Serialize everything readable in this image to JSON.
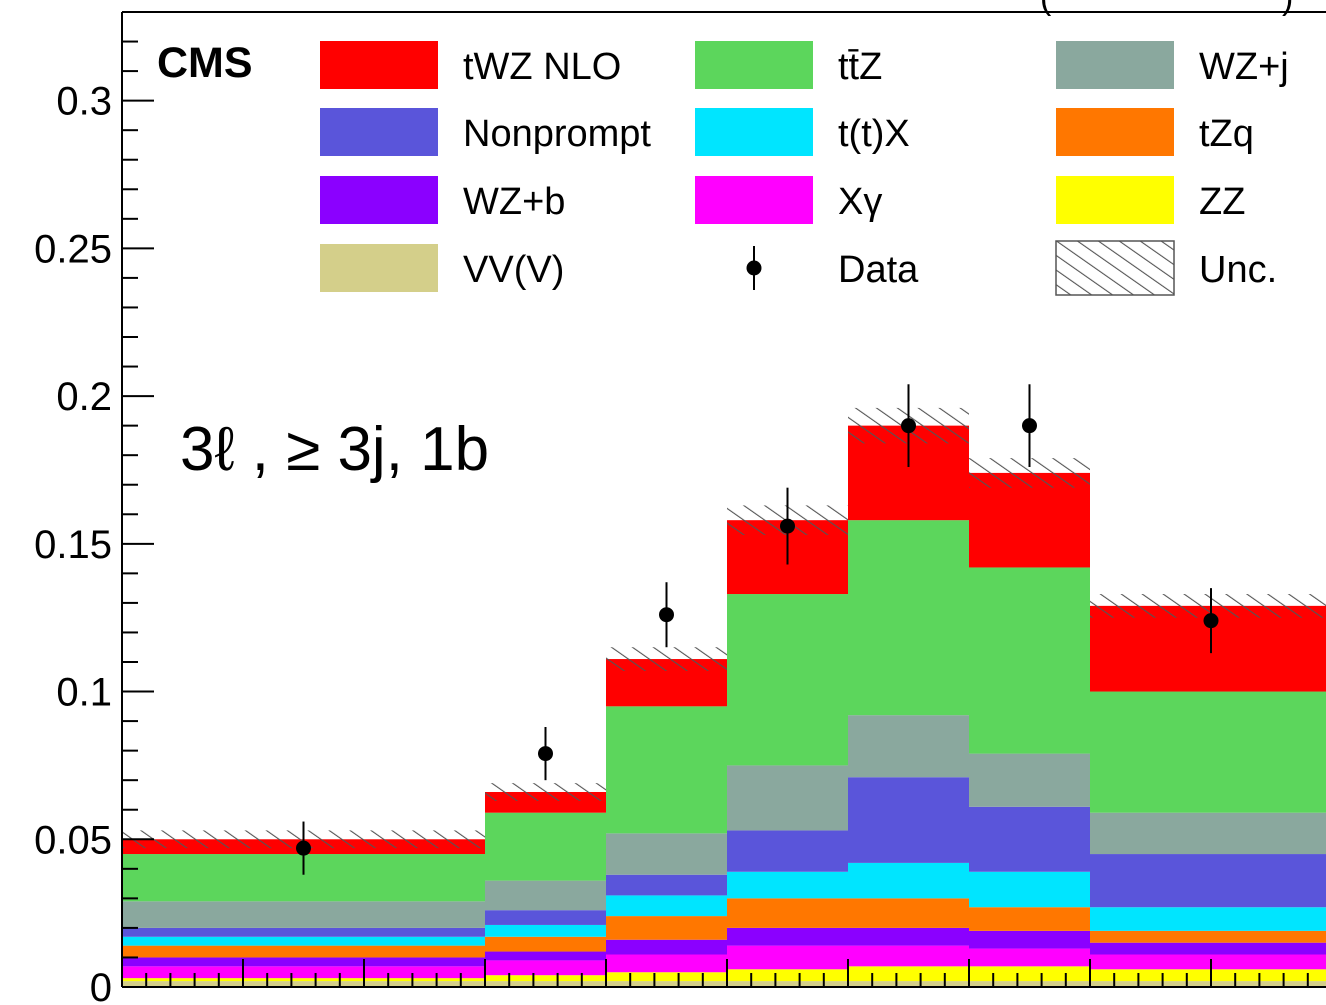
{
  "chart_data": {
    "type": "bar",
    "stacked": true,
    "experiment_label": "CMS",
    "region_label": "3ℓ , ≥ 3j, 1b",
    "title_partial": "(",
    "title_partial_right": ")",
    "x_bin_edges": [
      0,
      3,
      4,
      5,
      6,
      7,
      8,
      10
    ],
    "x_range": [
      0,
      10
    ],
    "y_range": [
      0,
      0.33
    ],
    "y_ticks": [
      0,
      0.05,
      0.1,
      0.15,
      0.2,
      0.25,
      0.3
    ],
    "y_tick_labels": [
      "0",
      "0.05",
      "0.1",
      "0.15",
      "0.2",
      "0.25",
      "0.3"
    ],
    "grid": false,
    "legend_position": "top",
    "series": [
      {
        "name": "VV(V)",
        "color": "#D4CF8A",
        "values": [
          0.002,
          0.002,
          0.002,
          0.002,
          0.002,
          0.002,
          0.002
        ]
      },
      {
        "name": "ZZ",
        "color": "#FFFF00",
        "values": [
          0.001,
          0.002,
          0.003,
          0.004,
          0.005,
          0.005,
          0.004
        ]
      },
      {
        "name": "Xγ",
        "color": "#FF00FF",
        "values": [
          0.004,
          0.005,
          0.006,
          0.008,
          0.007,
          0.006,
          0.005
        ]
      },
      {
        "name": "WZ+b",
        "color": "#8B00FF",
        "values": [
          0.003,
          0.003,
          0.005,
          0.006,
          0.006,
          0.006,
          0.004
        ]
      },
      {
        "name": "tZq",
        "color": "#FF7700",
        "values": [
          0.004,
          0.005,
          0.008,
          0.01,
          0.01,
          0.008,
          0.004
        ]
      },
      {
        "name": "t(t)X",
        "color": "#00E5FF",
        "values": [
          0.003,
          0.004,
          0.007,
          0.009,
          0.012,
          0.012,
          0.008
        ]
      },
      {
        "name": "Nonprompt",
        "color": "#5A55DA",
        "values": [
          0.003,
          0.005,
          0.007,
          0.014,
          0.029,
          0.022,
          0.018
        ]
      },
      {
        "name": "WZ+j",
        "color": "#8AA89E",
        "values": [
          0.009,
          0.01,
          0.014,
          0.022,
          0.021,
          0.018,
          0.014
        ]
      },
      {
        "name": "tt̄Z",
        "color": "#5CD65C",
        "values": [
          0.016,
          0.023,
          0.043,
          0.058,
          0.066,
          0.063,
          0.041
        ]
      },
      {
        "name": "tWZ NLO",
        "color": "#FF0000",
        "values": [
          0.005,
          0.007,
          0.016,
          0.025,
          0.032,
          0.032,
          0.029
        ]
      }
    ],
    "data": {
      "name": "Data",
      "x": [
        1.5,
        3.5,
        4.5,
        5.5,
        6.5,
        7.5,
        9.0
      ],
      "y": [
        0.047,
        0.079,
        0.126,
        0.156,
        0.19,
        0.19,
        0.124
      ],
      "err": [
        0.009,
        0.009,
        0.011,
        0.013,
        0.014,
        0.014,
        0.011
      ]
    },
    "unc_label": "Unc.",
    "unc_halfwidth": [
      0.003,
      0.003,
      0.004,
      0.005,
      0.006,
      0.005,
      0.004
    ],
    "legend_order": [
      "tWZ NLO",
      "tt̄Z",
      "WZ+j",
      "Nonprompt",
      "t(t)X",
      "tZq",
      "WZ+b",
      "Xγ",
      "ZZ",
      "VV(V)",
      "Data",
      "Unc."
    ]
  }
}
